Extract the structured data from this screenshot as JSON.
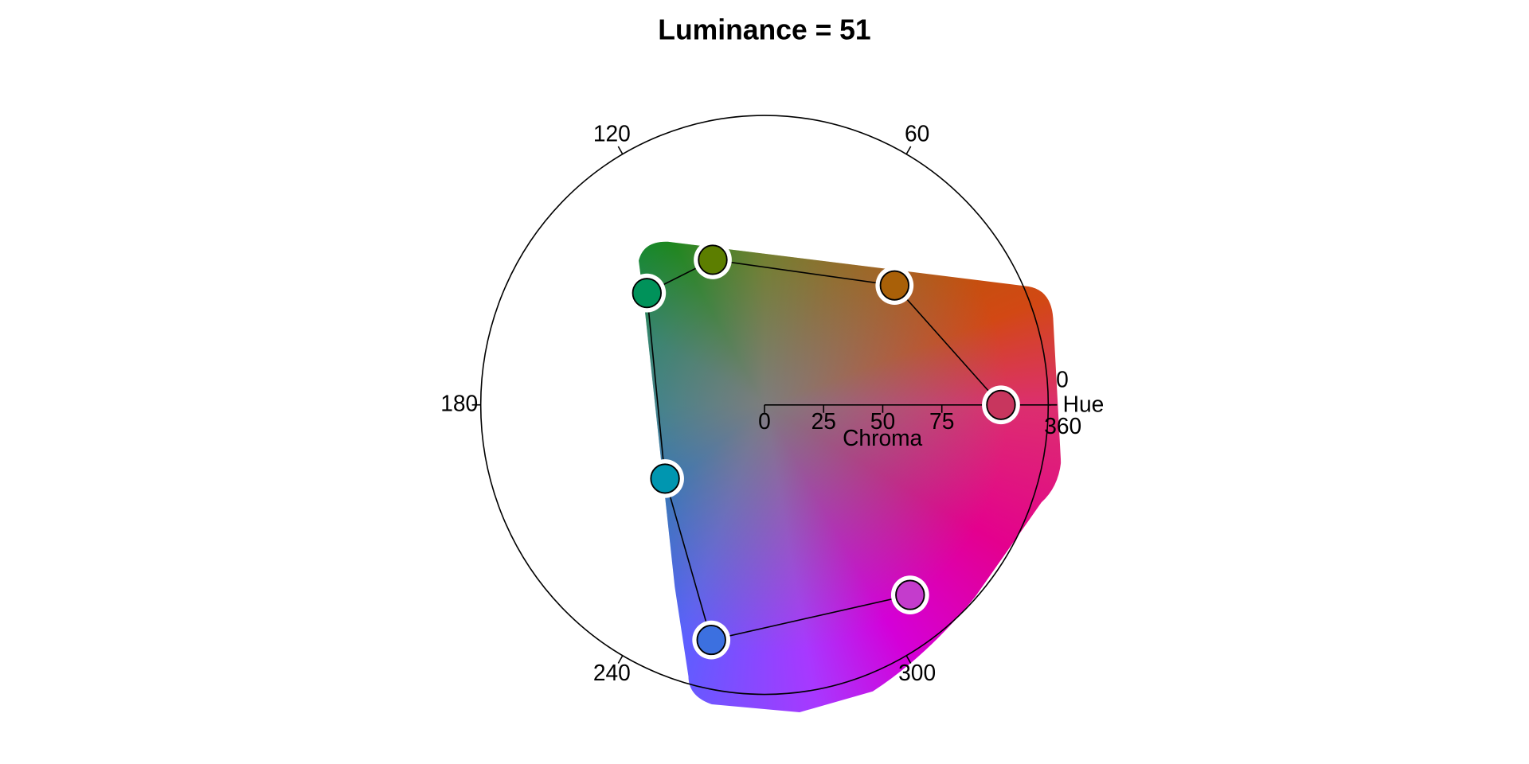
{
  "chart_data": {
    "type": "polar-scatter",
    "title": "Luminance = 51",
    "hue_label": "Hue",
    "chroma_label": "Chroma",
    "hue_ticks": [
      0,
      60,
      120,
      180,
      240,
      300,
      360
    ],
    "chroma_ticks": [
      0,
      25,
      50,
      75
    ],
    "chroma_lim": [
      0,
      120
    ],
    "hue": [
      360,
      42,
      110,
      137,
      216,
      257,
      308
    ],
    "chroma": [
      100,
      74,
      64,
      68,
      52,
      100,
      100
    ],
    "colors": [
      "#c8365e",
      "#a96008",
      "#5c7e00",
      "#00925a",
      "#0096b0",
      "#3c70e0",
      "#c43ccc"
    ]
  }
}
